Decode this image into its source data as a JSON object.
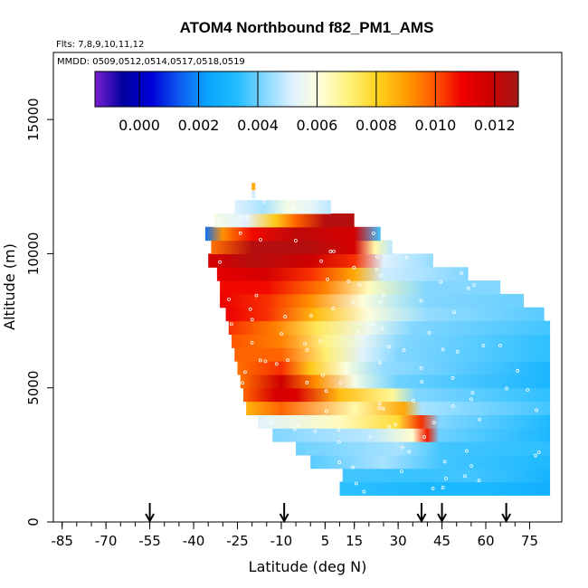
{
  "chart_data": {
    "type": "heatmap",
    "title": "ATOM4 Northbound f82_PM1_AMS",
    "flights_note": "Flts: 7,8,9,10,11,12",
    "dates_note": "MMDD: 0509,0512,0514,0517,0518,0519",
    "xlabel": "Latitude (deg N)",
    "ylabel": "Altitude (m)",
    "xlim": [
      -88,
      86
    ],
    "ylim": [
      0,
      17500
    ],
    "x_ticks": [
      -85,
      -70,
      -55,
      -40,
      -25,
      -10,
      5,
      15,
      30,
      45,
      60,
      75
    ],
    "x_ticks_labeled": [
      -85,
      -70,
      -55,
      -40,
      -25,
      -10,
      5,
      15,
      30,
      45,
      60,
      75
    ],
    "x_minor_step": 5,
    "y_ticks": [
      0,
      5000,
      10000,
      15000
    ],
    "colorbar": {
      "range": [
        -0.0015,
        0.0128
      ],
      "ticks": [
        "0.000",
        "0.002",
        "0.004",
        "0.006",
        "0.008",
        "0.010",
        "0.012"
      ],
      "tick_values": [
        0.0,
        0.002,
        0.004,
        0.006,
        0.008,
        0.01,
        0.012
      ],
      "palette": [
        "#7a1fd0",
        "#00009e",
        "#0000d6",
        "#0d5cf0",
        "#0aa6ff",
        "#1fbcff",
        "#84d7ff",
        "#dff2ff",
        "#ffffd8",
        "#fff27a",
        "#ffd21f",
        "#ff9e00",
        "#ff5a00",
        "#ef0000",
        "#cc0000",
        "#a51818"
      ]
    },
    "arrows_lat": [
      -55,
      -9,
      38,
      45,
      67
    ],
    "bands": [
      {
        "alt": 1250,
        "x0": 10,
        "x1": 82,
        "stops": [
          [
            10,
            0.0034
          ],
          [
            40,
            0.0031
          ],
          [
            60,
            0.0031
          ],
          [
            82,
            0.0027
          ]
        ]
      },
      {
        "alt": 1750,
        "x0": 11,
        "x1": 82,
        "stops": [
          [
            11,
            0.0036
          ],
          [
            40,
            0.0035
          ],
          [
            55,
            0.0036
          ],
          [
            82,
            0.0029
          ]
        ]
      },
      {
        "alt": 2250,
        "x0": 0,
        "x1": 82,
        "stops": [
          [
            0,
            0.0038
          ],
          [
            25,
            0.0046
          ],
          [
            45,
            0.0036
          ],
          [
            82,
            0.0032
          ]
        ]
      },
      {
        "alt": 2750,
        "x0": -5,
        "x1": 82,
        "stops": [
          [
            -5,
            0.004
          ],
          [
            30,
            0.0046
          ],
          [
            45,
            0.0036
          ],
          [
            82,
            0.0034
          ]
        ]
      },
      {
        "alt": 3250,
        "x0": -13,
        "x1": 82,
        "stops": [
          [
            -13,
            0.0042
          ],
          [
            20,
            0.0048
          ],
          [
            35,
            0.0062
          ],
          [
            40,
            0.0106
          ],
          [
            44,
            0.004
          ],
          [
            82,
            0.0031
          ]
        ]
      },
      {
        "alt": 3750,
        "x0": -18,
        "x1": 82,
        "stops": [
          [
            -18,
            0.0052
          ],
          [
            10,
            0.0064
          ],
          [
            30,
            0.0078
          ],
          [
            38,
            0.0104
          ],
          [
            44,
            0.0042
          ],
          [
            82,
            0.0032
          ]
        ]
      },
      {
        "alt": 4250,
        "x0": -22,
        "x1": 82,
        "stops": [
          [
            -22,
            0.0086
          ],
          [
            -10,
            0.0098
          ],
          [
            15,
            0.0066
          ],
          [
            32,
            0.0088
          ],
          [
            38,
            0.0046
          ],
          [
            82,
            0.0036
          ]
        ]
      },
      {
        "alt": 4750,
        "x0": -23,
        "x1": 82,
        "stops": [
          [
            -23,
            0.0098
          ],
          [
            -12,
            0.0116
          ],
          [
            -5,
            0.0114
          ],
          [
            10,
            0.0084
          ],
          [
            28,
            0.0068
          ],
          [
            36,
            0.0042
          ],
          [
            82,
            0.0034
          ]
        ]
      },
      {
        "alt": 5250,
        "x0": -24,
        "x1": 82,
        "stops": [
          [
            -24,
            0.0096
          ],
          [
            -10,
            0.0118
          ],
          [
            2,
            0.0092
          ],
          [
            15,
            0.0058
          ],
          [
            30,
            0.004
          ],
          [
            82,
            0.003
          ]
        ]
      },
      {
        "alt": 5750,
        "x0": -25,
        "x1": 82,
        "stops": [
          [
            -25,
            0.0096
          ],
          [
            -10,
            0.0104
          ],
          [
            0,
            0.0082
          ],
          [
            12,
            0.006
          ],
          [
            25,
            0.0044
          ],
          [
            82,
            0.003
          ]
        ]
      },
      {
        "alt": 6250,
        "x0": -26,
        "x1": 82,
        "stops": [
          [
            -26,
            0.0098
          ],
          [
            -10,
            0.0098
          ],
          [
            5,
            0.0072
          ],
          [
            18,
            0.0052
          ],
          [
            30,
            0.0042
          ],
          [
            82,
            0.0034
          ]
        ]
      },
      {
        "alt": 6750,
        "x0": -27,
        "x1": 82,
        "stops": [
          [
            -27,
            0.01
          ],
          [
            -10,
            0.0094
          ],
          [
            5,
            0.007
          ],
          [
            18,
            0.0054
          ],
          [
            32,
            0.0042
          ],
          [
            82,
            0.0034
          ]
        ]
      },
      {
        "alt": 7250,
        "x0": -28,
        "x1": 82,
        "stops": [
          [
            -28,
            0.0104
          ],
          [
            -12,
            0.0094
          ],
          [
            2,
            0.0074
          ],
          [
            20,
            0.0056
          ],
          [
            35,
            0.0042
          ],
          [
            82,
            0.0036
          ]
        ]
      },
      {
        "alt": 7750,
        "x0": -29,
        "x1": 80,
        "stops": [
          [
            -29,
            0.011
          ],
          [
            -15,
            0.0104
          ],
          [
            2,
            0.0084
          ],
          [
            20,
            0.006
          ],
          [
            40,
            0.0044
          ],
          [
            80,
            0.0038
          ]
        ]
      },
      {
        "alt": 8250,
        "x0": -31,
        "x1": 73,
        "stops": [
          [
            -31,
            0.011
          ],
          [
            -15,
            0.0104
          ],
          [
            0,
            0.0092
          ],
          [
            18,
            0.006
          ],
          [
            40,
            0.0042
          ],
          [
            73,
            0.004
          ]
        ]
      },
      {
        "alt": 8750,
        "x0": -31,
        "x1": 65,
        "stops": [
          [
            -31,
            0.0108
          ],
          [
            -15,
            0.0108
          ],
          [
            5,
            0.0094
          ],
          [
            20,
            0.0064
          ],
          [
            40,
            0.0042
          ],
          [
            65,
            0.0042
          ]
        ]
      },
      {
        "alt": 9250,
        "x0": -32,
        "x1": 54,
        "stops": [
          [
            -32,
            0.0112
          ],
          [
            -15,
            0.0116
          ],
          [
            0,
            0.0104
          ],
          [
            15,
            0.0088
          ],
          [
            25,
            0.005
          ],
          [
            54,
            0.0042
          ]
        ]
      },
      {
        "alt": 9750,
        "x0": -35,
        "x1": 42,
        "stops": [
          [
            -35,
            0.0116
          ],
          [
            -20,
            0.0124
          ],
          [
            0,
            0.0118
          ],
          [
            15,
            0.0104
          ],
          [
            25,
            0.0052
          ],
          [
            42,
            0.0044
          ]
        ]
      },
      {
        "alt": 10250,
        "x0": -34,
        "x1": 28,
        "stops": [
          [
            -34,
            0.0096
          ],
          [
            -20,
            0.0124
          ],
          [
            0,
            0.0124
          ],
          [
            15,
            0.0116
          ],
          [
            22,
            0.0066
          ],
          [
            28,
            0.0048
          ]
        ]
      },
      {
        "alt": 10750,
        "x0": -36,
        "x1": 24,
        "stops": [
          [
            -36,
            0.0016
          ],
          [
            -30,
            0.0092
          ],
          [
            -20,
            0.0108
          ],
          [
            -5,
            0.0122
          ],
          [
            15,
            0.0116
          ],
          [
            24,
            0.0036
          ]
        ]
      },
      {
        "alt": 11250,
        "x0": -33,
        "x1": 15,
        "stops": [
          [
            -33,
            0.0058
          ],
          [
            -22,
            0.0052
          ],
          [
            -12,
            0.0082
          ],
          [
            -5,
            0.0098
          ],
          [
            5,
            0.0124
          ],
          [
            15,
            0.0124
          ]
        ]
      },
      {
        "alt": 11750,
        "x0": -26,
        "x1": 7,
        "stops": [
          [
            -26,
            0.0052
          ],
          [
            -16,
            0.0046
          ],
          [
            -8,
            0.0058
          ],
          [
            0,
            0.0054
          ],
          [
            7,
            0.0048
          ]
        ]
      }
    ],
    "top_spots": [
      {
        "lat": -19.5,
        "alt": 12500,
        "value": 0.0088
      },
      {
        "lat": -19.5,
        "alt": 12200,
        "value": 0.005
      }
    ]
  }
}
